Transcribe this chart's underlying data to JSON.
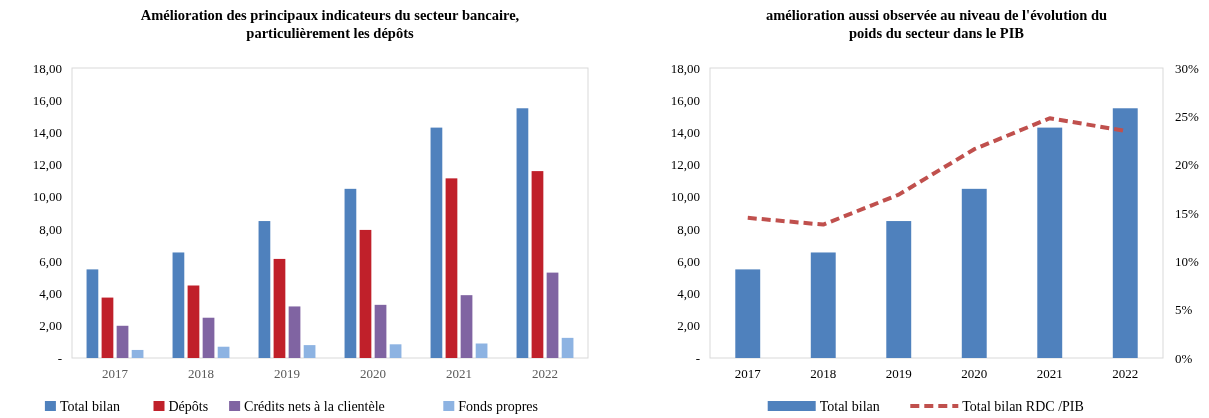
{
  "chart_data": [
    {
      "type": "bar",
      "title": "Amélioration des principaux indicateurs du secteur bancaire,\nparticulièrement les dépôts",
      "categories": [
        "2017",
        "2018",
        "2019",
        "2020",
        "2021",
        "2022"
      ],
      "series": [
        {
          "name": "Total bilan",
          "color": "#4f81bd",
          "values": [
            5.5,
            6.55,
            8.5,
            10.5,
            14.3,
            15.5
          ]
        },
        {
          "name": "Dépôts",
          "color": "#c0202a",
          "values": [
            3.75,
            4.5,
            6.15,
            7.95,
            11.15,
            11.6
          ]
        },
        {
          "name": "Crédits nets à la clientèle",
          "color": "#8064a2",
          "values": [
            2.0,
            2.5,
            3.2,
            3.3,
            3.9,
            5.3
          ]
        },
        {
          "name": "Fonds propres",
          "color": "#8db3e2",
          "values": [
            0.5,
            0.7,
            0.8,
            0.85,
            0.9,
            1.25
          ]
        }
      ],
      "ylim": [
        0,
        18
      ],
      "yticks": [
        {
          "value": 0,
          "label": "-"
        },
        {
          "value": 2,
          "label": "2,00"
        },
        {
          "value": 4,
          "label": "4,00"
        },
        {
          "value": 6,
          "label": "6,00"
        },
        {
          "value": 8,
          "label": "8,00"
        },
        {
          "value": 10,
          "label": "10,00"
        },
        {
          "value": 12,
          "label": "12,00"
        },
        {
          "value": 14,
          "label": "14,00"
        },
        {
          "value": 16,
          "label": "16,00"
        },
        {
          "value": 18,
          "label": "18,00"
        }
      ],
      "grid": false,
      "legend": "bottom"
    },
    {
      "type": "bar",
      "title": "amélioration aussi observée au niveau de l'évolution du\npoids du secteur dans le PIB",
      "categories": [
        "2017",
        "2018",
        "2019",
        "2020",
        "2021",
        "2022"
      ],
      "series": [
        {
          "name": "Total bilan",
          "color": "#4f81bd",
          "values": [
            5.5,
            6.55,
            8.5,
            10.5,
            14.3,
            15.5
          ]
        },
        {
          "name": "Total bilan RDC /PIB",
          "type": "line",
          "axis": "y2",
          "color": "#c0504d",
          "line_style": "dashed",
          "values": [
            14.5,
            13.8,
            16.9,
            21.6,
            24.8,
            23.5
          ]
        }
      ],
      "ylim": [
        0,
        18
      ],
      "yticks": [
        {
          "value": 0,
          "label": "-"
        },
        {
          "value": 2,
          "label": "2,00"
        },
        {
          "value": 4,
          "label": "4,00"
        },
        {
          "value": 6,
          "label": "6,00"
        },
        {
          "value": 8,
          "label": "8,00"
        },
        {
          "value": 10,
          "label": "10,00"
        },
        {
          "value": 12,
          "label": "12,00"
        },
        {
          "value": 14,
          "label": "14,00"
        },
        {
          "value": 16,
          "label": "16,00"
        },
        {
          "value": 18,
          "label": "18,00"
        }
      ],
      "y2lim": [
        0,
        30
      ],
      "y2ticks": [
        {
          "value": 0,
          "label": "0%"
        },
        {
          "value": 5,
          "label": "5%"
        },
        {
          "value": 10,
          "label": "10%"
        },
        {
          "value": 15,
          "label": "15%"
        },
        {
          "value": 20,
          "label": "20%"
        },
        {
          "value": 25,
          "label": "25%"
        },
        {
          "value": 30,
          "label": "30%"
        }
      ],
      "grid": false,
      "legend": "bottom",
      "marker": "none"
    }
  ]
}
